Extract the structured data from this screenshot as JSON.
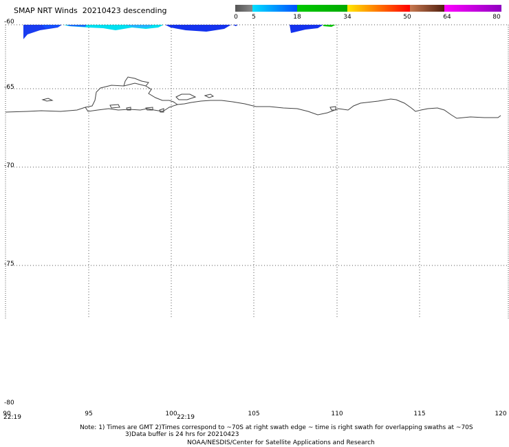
{
  "title": "SMAP NRT Winds  20210423 descending",
  "colorbar": {
    "segments": [
      {
        "from": 0,
        "to": 5,
        "colors": [
          "#555555",
          "#888888"
        ]
      },
      {
        "from": 5,
        "to": 18,
        "colors": [
          "#00e0ff",
          "#0050ff"
        ]
      },
      {
        "from": 18,
        "to": 34,
        "colors": [
          "#00c800",
          "#00aa00"
        ]
      },
      {
        "from": 34,
        "to": 50,
        "colors": [
          "#ffe800",
          "#ff0000"
        ]
      },
      {
        "from": 50,
        "to": 64,
        "colors": [
          "#c87850",
          "#502010"
        ]
      },
      {
        "from": 64,
        "to": 80,
        "colors": [
          "#ff00ff",
          "#9000c0"
        ]
      }
    ],
    "tick_labels": [
      "0",
      "5",
      "18",
      "34",
      "50",
      "64",
      "80"
    ]
  },
  "map": {
    "lon_range": [
      90,
      120
    ],
    "lat_range": [
      -80,
      -60
    ],
    "lat_labels": [
      "-60",
      "-65",
      "-70",
      "-75",
      "-80"
    ],
    "lon_labels": [
      "90",
      "95",
      "100",
      "105",
      "110",
      "115",
      "120"
    ],
    "time_labels": [
      {
        "text": "22:19",
        "lon": 90.2
      },
      {
        "text": "22:19",
        "lon": 100.7
      }
    ]
  },
  "notes": {
    "line1": "Note: 1) Times are GMT 2)Times correspond to ~70S at right swath edge ~ time is right swath for overlapping swaths at ~70S",
    "line2": "3)Data buffer is 24 hrs for 20210423"
  },
  "credit": "NOAA/NESDIS/Center for Satellite Applications and Research"
}
